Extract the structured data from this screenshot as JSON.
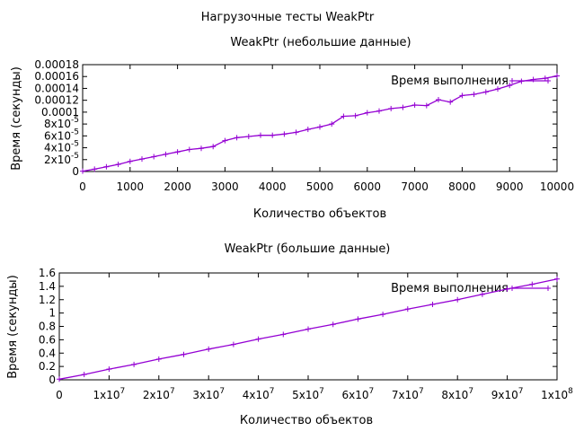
{
  "figure_title": "Нагрузочные тесты WeakPtr",
  "colors": {
    "series": "#9400d3",
    "axis": "#000000"
  },
  "chart_data": [
    {
      "type": "line",
      "title": "WeakPtr (небольшие данные)",
      "xlabel": "Количество объектов",
      "ylabel": "Время (секунды)",
      "xlim": [
        0,
        10000
      ],
      "ylim": [
        0,
        0.00018
      ],
      "xticks": [
        {
          "value": 0,
          "label": "0"
        },
        {
          "value": 1000,
          "label": "1000"
        },
        {
          "value": 2000,
          "label": "2000"
        },
        {
          "value": 3000,
          "label": "3000"
        },
        {
          "value": 4000,
          "label": "4000"
        },
        {
          "value": 5000,
          "label": "5000"
        },
        {
          "value": 6000,
          "label": "6000"
        },
        {
          "value": 7000,
          "label": "7000"
        },
        {
          "value": 8000,
          "label": "8000"
        },
        {
          "value": 9000,
          "label": "9000"
        },
        {
          "value": 10000,
          "label": "10000"
        }
      ],
      "yticks": [
        {
          "value": 0,
          "label": "0"
        },
        {
          "value": 2e-05,
          "mant": "2x10",
          "exp": "-5"
        },
        {
          "value": 4e-05,
          "mant": "4x10",
          "exp": "-5"
        },
        {
          "value": 6e-05,
          "mant": "6x10",
          "exp": "-5"
        },
        {
          "value": 8e-05,
          "mant": "8x10",
          "exp": "-5"
        },
        {
          "value": 0.0001,
          "label": "0.0001"
        },
        {
          "value": 0.00012,
          "label": "0.00012"
        },
        {
          "value": 0.00014,
          "label": "0.00014"
        },
        {
          "value": 0.00016,
          "label": "0.00016"
        },
        {
          "value": 0.00018,
          "label": "0.00018"
        }
      ],
      "legend": "top-right",
      "grid": false,
      "series": [
        {
          "name": "Время выполнения",
          "x": [
            0,
            250,
            500,
            750,
            1000,
            1250,
            1500,
            1750,
            2000,
            2250,
            2500,
            2750,
            3000,
            3250,
            3500,
            3750,
            4000,
            4250,
            4500,
            4750,
            5000,
            5250,
            5500,
            5750,
            6000,
            6250,
            6500,
            6750,
            7000,
            7250,
            7500,
            7750,
            8000,
            8250,
            8500,
            8750,
            9000,
            9250,
            9500,
            9750,
            10000
          ],
          "values": [
            5e-07,
            4e-06,
            8e-06,
            1.2e-05,
            1.7e-05,
            2.1e-05,
            2.5e-05,
            2.9e-05,
            3.3e-05,
            3.7e-05,
            3.9e-05,
            4.2e-05,
            5.2e-05,
            5.7e-05,
            5.9e-05,
            6.1e-05,
            6.1e-05,
            6.3e-05,
            6.6e-05,
            7.1e-05,
            7.5e-05,
            8e-05,
            9.3e-05,
            9.4e-05,
            9.9e-05,
            0.000102,
            0.000106,
            0.000108,
            0.000112,
            0.000111,
            0.000121,
            0.000117,
            0.000128,
            0.00013,
            0.000134,
            0.000139,
            0.000145,
            0.000152,
            0.000155,
            0.000157,
            0.000161
          ]
        }
      ]
    },
    {
      "type": "line",
      "title": "WeakPtr (большие данные)",
      "xlabel": "Количество объектов",
      "ylabel": "Время (секунды)",
      "xlim": [
        0,
        100000000
      ],
      "ylim": [
        0,
        1.6
      ],
      "xticks": [
        {
          "value": 0,
          "label": "0"
        },
        {
          "value": 10000000,
          "mant": "1x10",
          "exp": "7"
        },
        {
          "value": 20000000,
          "mant": "2x10",
          "exp": "7"
        },
        {
          "value": 30000000,
          "mant": "3x10",
          "exp": "7"
        },
        {
          "value": 40000000,
          "mant": "4x10",
          "exp": "7"
        },
        {
          "value": 50000000,
          "mant": "5x10",
          "exp": "7"
        },
        {
          "value": 60000000,
          "mant": "6x10",
          "exp": "7"
        },
        {
          "value": 70000000,
          "mant": "7x10",
          "exp": "7"
        },
        {
          "value": 80000000,
          "mant": "8x10",
          "exp": "7"
        },
        {
          "value": 90000000,
          "mant": "9x10",
          "exp": "7"
        },
        {
          "value": 100000000,
          "mant": "1x10",
          "exp": "8"
        }
      ],
      "yticks": [
        {
          "value": 0,
          "label": "0"
        },
        {
          "value": 0.2,
          "label": "0.2"
        },
        {
          "value": 0.4,
          "label": "0.4"
        },
        {
          "value": 0.6,
          "label": "0.6"
        },
        {
          "value": 0.8,
          "label": "0.8"
        },
        {
          "value": 1,
          "label": "1"
        },
        {
          "value": 1.2,
          "label": "1.2"
        },
        {
          "value": 1.4,
          "label": "1.4"
        },
        {
          "value": 1.6,
          "label": "1.6"
        }
      ],
      "legend": "top-right",
      "grid": false,
      "series": [
        {
          "name": "Время выполнения",
          "x": [
            0,
            5000000,
            10000000,
            15000000,
            20000000,
            25000000,
            30000000,
            35000000,
            40000000,
            45000000,
            50000000,
            55000000,
            60000000,
            65000000,
            70000000,
            75000000,
            80000000,
            85000000,
            90000000,
            95000000,
            100000000
          ],
          "values": [
            0.01,
            0.08,
            0.16,
            0.23,
            0.31,
            0.38,
            0.46,
            0.53,
            0.61,
            0.68,
            0.76,
            0.83,
            0.91,
            0.98,
            1.06,
            1.13,
            1.2,
            1.28,
            1.36,
            1.43,
            1.51
          ]
        }
      ]
    }
  ]
}
